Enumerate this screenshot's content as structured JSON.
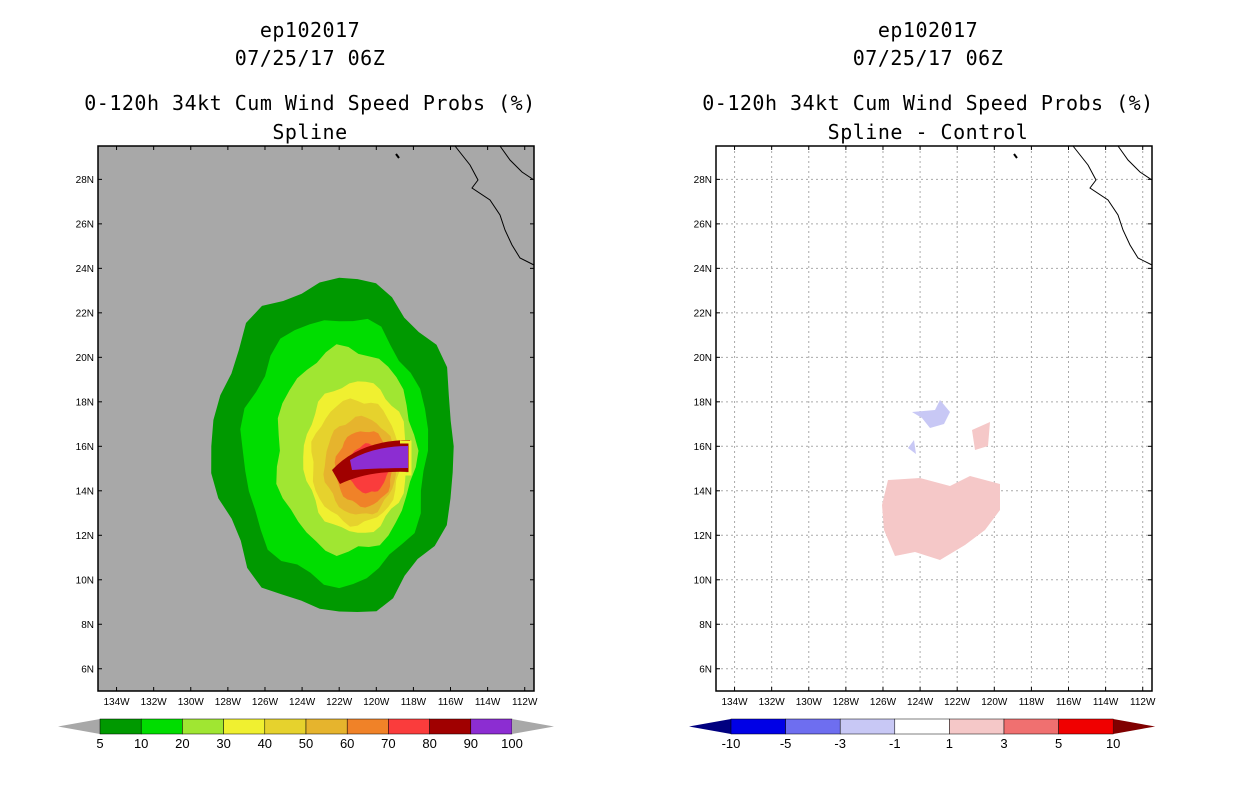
{
  "chart_data": [
    {
      "type": "heatmap",
      "storm_id": "ep102017",
      "datetime": "07/25/17 06Z",
      "title": "0-120h 34kt Cum Wind Speed Probs (%)",
      "subtitle": "Spline",
      "x_ticks": [
        "134W",
        "132W",
        "130W",
        "128W",
        "126W",
        "124W",
        "122W",
        "120W",
        "118W",
        "116W",
        "114W",
        "112W"
      ],
      "y_ticks": [
        "6N",
        "8N",
        "10N",
        "12N",
        "14N",
        "16N",
        "18N",
        "20N",
        "22N",
        "24N",
        "26N",
        "28N"
      ],
      "xlim": [
        -135,
        -111.5
      ],
      "ylim": [
        5,
        29.5
      ],
      "grid": false,
      "background": "#a8a8a8",
      "colorbar": {
        "labels": [
          "5",
          "10",
          "20",
          "30",
          "40",
          "50",
          "60",
          "70",
          "80",
          "90",
          "100"
        ],
        "colors": [
          "#009900",
          "#00dd00",
          "#a0e632",
          "#f0f030",
          "#e6d22d",
          "#e6b42d",
          "#f08228",
          "#fa3c3c",
          "#a00000",
          "#8c2dd2"
        ],
        "extend_color": "#a8a8a8"
      },
      "probability_regions": [
        {
          "level": 5,
          "color": "#009900",
          "center": [
            -122,
            16
          ],
          "radii": [
            6.8,
            7.5
          ]
        },
        {
          "level": 10,
          "color": "#00dd00",
          "center": [
            -122,
            15.8
          ],
          "radii": [
            5.2,
            6.0
          ]
        },
        {
          "level": 20,
          "color": "#a0e632",
          "center": [
            -121.5,
            15.8
          ],
          "radii": [
            3.9,
            4.6
          ]
        },
        {
          "level": 30,
          "color": "#f0f030",
          "center": [
            -121,
            15.5
          ],
          "radii": [
            2.9,
            3.4
          ]
        },
        {
          "level": 40,
          "color": "#e6d22d",
          "center": [
            -121,
            15.3
          ],
          "radii": [
            2.5,
            2.8
          ]
        },
        {
          "level": 50,
          "color": "#e6b42d",
          "center": [
            -120.8,
            15.1
          ],
          "radii": [
            2.0,
            2.2
          ]
        },
        {
          "level": 60,
          "color": "#f08228",
          "center": [
            -120.6,
            15.0
          ],
          "radii": [
            1.6,
            1.7
          ]
        },
        {
          "level": 70,
          "color": "#fa3c3c",
          "center": [
            -120.4,
            15.0
          ],
          "radii": [
            1.1,
            1.1
          ]
        }
      ]
    },
    {
      "type": "heatmap",
      "storm_id": "ep102017",
      "datetime": "07/25/17 06Z",
      "title": "0-120h 34kt Cum Wind Speed Probs (%)",
      "subtitle": "Spline - Control",
      "x_ticks": [
        "134W",
        "132W",
        "130W",
        "128W",
        "126W",
        "124W",
        "122W",
        "120W",
        "118W",
        "116W",
        "114W",
        "112W"
      ],
      "y_ticks": [
        "6N",
        "8N",
        "10N",
        "12N",
        "14N",
        "16N",
        "18N",
        "20N",
        "22N",
        "24N",
        "26N",
        "28N"
      ],
      "xlim": [
        -135,
        -111.5
      ],
      "ylim": [
        5,
        29.5
      ],
      "grid": true,
      "background": "#ffffff",
      "colorbar": {
        "labels": [
          "-10",
          "-5",
          "-3",
          "-1",
          "1",
          "3",
          "5",
          "10"
        ],
        "colors": [
          "#0000e6",
          "#6e6ef0",
          "#c8c8f5",
          "#ffffff",
          "#f5c8c8",
          "#f07070",
          "#f00000"
        ],
        "low_extend_color": "#000080",
        "high_extend_color": "#800000"
      },
      "difference_regions": [
        {
          "level": "1 to 3",
          "color": "#f5c8c8",
          "area": "12N-14N, 120W-124W"
        },
        {
          "level": "-1 to -3",
          "color": "#c8c8f5",
          "area": "17.5N-18N, 122W-124W"
        }
      ]
    }
  ]
}
